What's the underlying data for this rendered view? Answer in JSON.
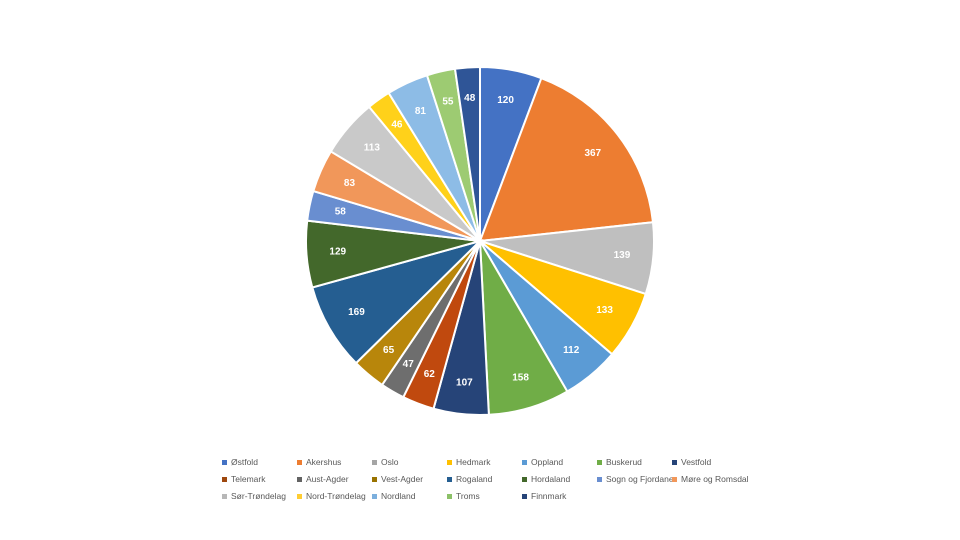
{
  "chart_data": {
    "type": "pie",
    "title": "",
    "legend_position": "bottom",
    "categories": [
      "Østfold",
      "Akershus",
      "Oslo",
      "Hedmark",
      "Oppland",
      "Buskerud",
      "Vestfold",
      "Telemark",
      "Aust-Agder",
      "Vest-Agder",
      "Rogaland",
      "Hordaland",
      "Sogn og Fjordane",
      "Møre og Romsdal",
      "Sør-Trøndelag",
      "Nord-Trøndelag",
      "Nordland",
      "Troms",
      "Finnmark"
    ],
    "legend_colors": [
      "#4472C4",
      "#ED7D31",
      "#A5A5A5",
      "#FFC000",
      "#5B9BD5",
      "#70AD47",
      "#264478",
      "#9E480E",
      "#636363",
      "#997300",
      "#255E91",
      "#43682B",
      "#698ED0",
      "#F1975A",
      "#B7B7B7",
      "#FFCD33",
      "#7CAFDD",
      "#8CC168",
      "#264478"
    ],
    "slices": [
      {
        "label": "Østfold",
        "value": 120,
        "color": "#4472C4"
      },
      {
        "label": "Akershus",
        "value": 367,
        "color": "#ED7D31"
      },
      {
        "label": "Oslo",
        "value": 139,
        "color": "#BFBFBF"
      },
      {
        "label": "Hedmark",
        "value": 133,
        "color": "#FFC000"
      },
      {
        "label": "Oppland",
        "value": 112,
        "color": "#5B9BD5"
      },
      {
        "label": "Buskerud",
        "value": 158,
        "color": "#70AD47"
      },
      {
        "label": "Vestfold",
        "value": 107,
        "color": "#264478"
      },
      {
        "label": "Telemark",
        "value": 62,
        "color": "#C0490E"
      },
      {
        "label": "Aust-Agder",
        "value": 47,
        "color": "#6E6E6E"
      },
      {
        "label": "Vest-Agder",
        "value": 65,
        "color": "#B8860B"
      },
      {
        "label": "Rogaland",
        "value": 169,
        "color": "#255E91"
      },
      {
        "label": "Hordaland",
        "value": 129,
        "color": "#43682B"
      },
      {
        "label": "Sogn og Fjordane",
        "value": 58,
        "color": "#698ED0"
      },
      {
        "label": "Møre og Romsdal",
        "value": 83,
        "color": "#F1975A"
      },
      {
        "label": "Sør-Trøndelag",
        "value": 113,
        "color": "#C9C9C9"
      },
      {
        "label": "Nord-Trøndelag",
        "value": 46,
        "color": "#FFD11A"
      },
      {
        "label": "Nordland",
        "value": 81,
        "color": "#8DBCE6"
      },
      {
        "label": "Troms",
        "value": 55,
        "color": "#9DCB72"
      },
      {
        "label": "Finnmark",
        "value": 48,
        "color": "#2F5597"
      }
    ]
  }
}
